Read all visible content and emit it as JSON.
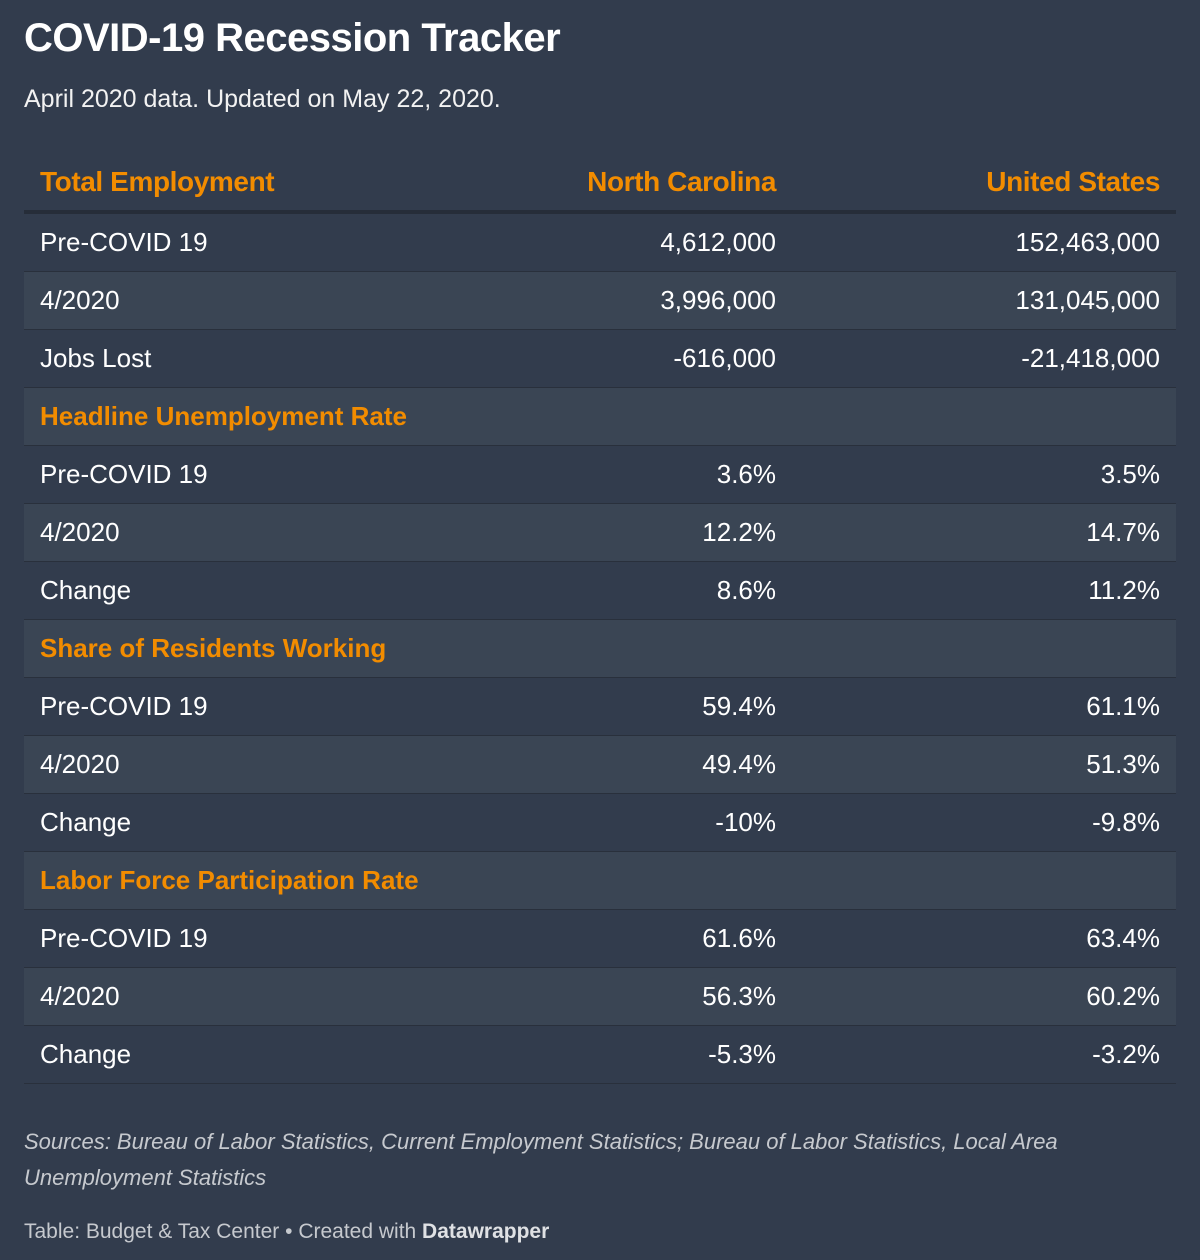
{
  "title": "COVID-19 Recession Tracker",
  "subtitle": "April 2020 data. Updated on May 22, 2020.",
  "colors": {
    "background": "#323c4d",
    "accent": "#f28c00",
    "row_shade": "#3a4554"
  },
  "chart_data": {
    "type": "table",
    "columns": [
      "Total Employment",
      "North Carolina",
      "United States"
    ],
    "rows": [
      {
        "kind": "data",
        "label": "Pre-COVID 19",
        "nc": "4,612,000",
        "us": "152,463,000"
      },
      {
        "kind": "data",
        "label": "4/2020",
        "nc": "3,996,000",
        "us": "131,045,000"
      },
      {
        "kind": "data",
        "label": "Jobs Lost",
        "nc": "-616,000",
        "us": "-21,418,000"
      },
      {
        "kind": "section",
        "label": "Headline Unemployment Rate"
      },
      {
        "kind": "data",
        "label": "Pre-COVID 19",
        "nc": "3.6%",
        "us": "3.5%"
      },
      {
        "kind": "data",
        "label": "4/2020",
        "nc": "12.2%",
        "us": "14.7%"
      },
      {
        "kind": "data",
        "label": "Change",
        "nc": "8.6%",
        "us": "11.2%"
      },
      {
        "kind": "section",
        "label": "Share of Residents Working"
      },
      {
        "kind": "data",
        "label": "Pre-COVID 19",
        "nc": "59.4%",
        "us": "61.1%"
      },
      {
        "kind": "data",
        "label": "4/2020",
        "nc": "49.4%",
        "us": "51.3%"
      },
      {
        "kind": "data",
        "label": "Change",
        "nc": "-10%",
        "us": "-9.8%"
      },
      {
        "kind": "section",
        "label": "Labor Force Participation Rate"
      },
      {
        "kind": "data",
        "label": "Pre-COVID 19",
        "nc": "61.6%",
        "us": "63.4%"
      },
      {
        "kind": "data",
        "label": "4/2020",
        "nc": "56.3%",
        "us": "60.2%"
      },
      {
        "kind": "data",
        "label": "Change",
        "nc": "-5.3%",
        "us": "-3.2%"
      }
    ]
  },
  "notes": "Sources: Bureau of Labor Statistics, Current Employment Statistics; Bureau of Labor Statistics, Local Area Unemployment Statistics",
  "footer": {
    "prefix": "Table: Budget & Tax Center",
    "separator": " • ",
    "created_with": "Created with",
    "brand": "Datawrapper"
  }
}
